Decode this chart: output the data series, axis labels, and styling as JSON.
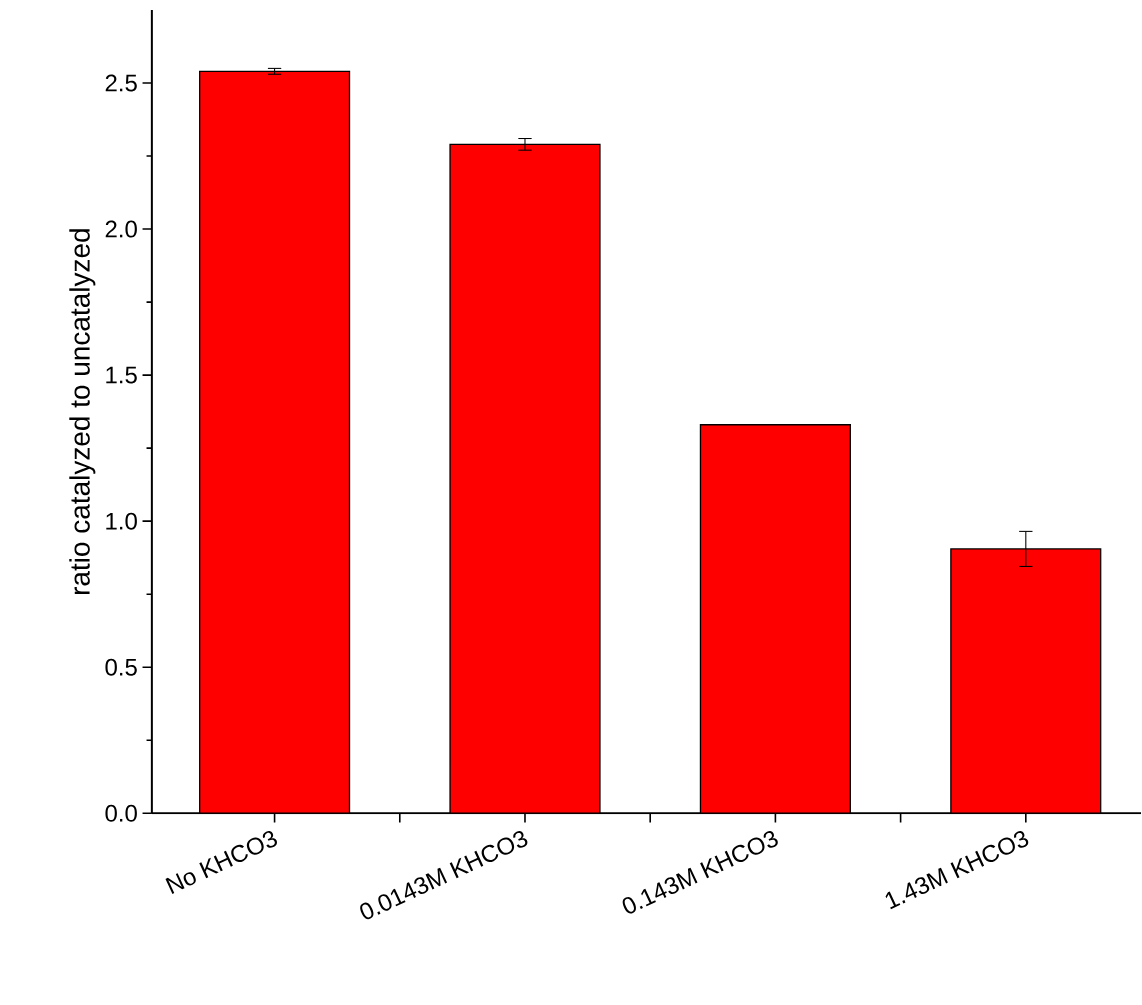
{
  "chart_data": {
    "type": "bar",
    "ylabel": "ratio catalyzed to uncatalyzed",
    "categories": [
      "No KHCO3",
      "0.0143M KHCO3",
      "0.143M KHCO3",
      "1.43M KHCO3"
    ],
    "values": [
      2.54,
      2.29,
      1.33,
      0.905
    ],
    "errors": [
      0.01,
      0.02,
      null,
      0.06
    ],
    "color": "#ff0000",
    "ylim": [
      0,
      2.75
    ],
    "yticks": [
      {
        "value": 0,
        "label": "0.0"
      },
      {
        "value": 0.5,
        "label": "0.5"
      },
      {
        "value": 1,
        "label": "1.0"
      },
      {
        "value": 1.5,
        "label": "1.5"
      },
      {
        "value": 2,
        "label": "2.0"
      },
      {
        "value": 2.5,
        "label": "2.5"
      }
    ],
    "grid": false
  }
}
